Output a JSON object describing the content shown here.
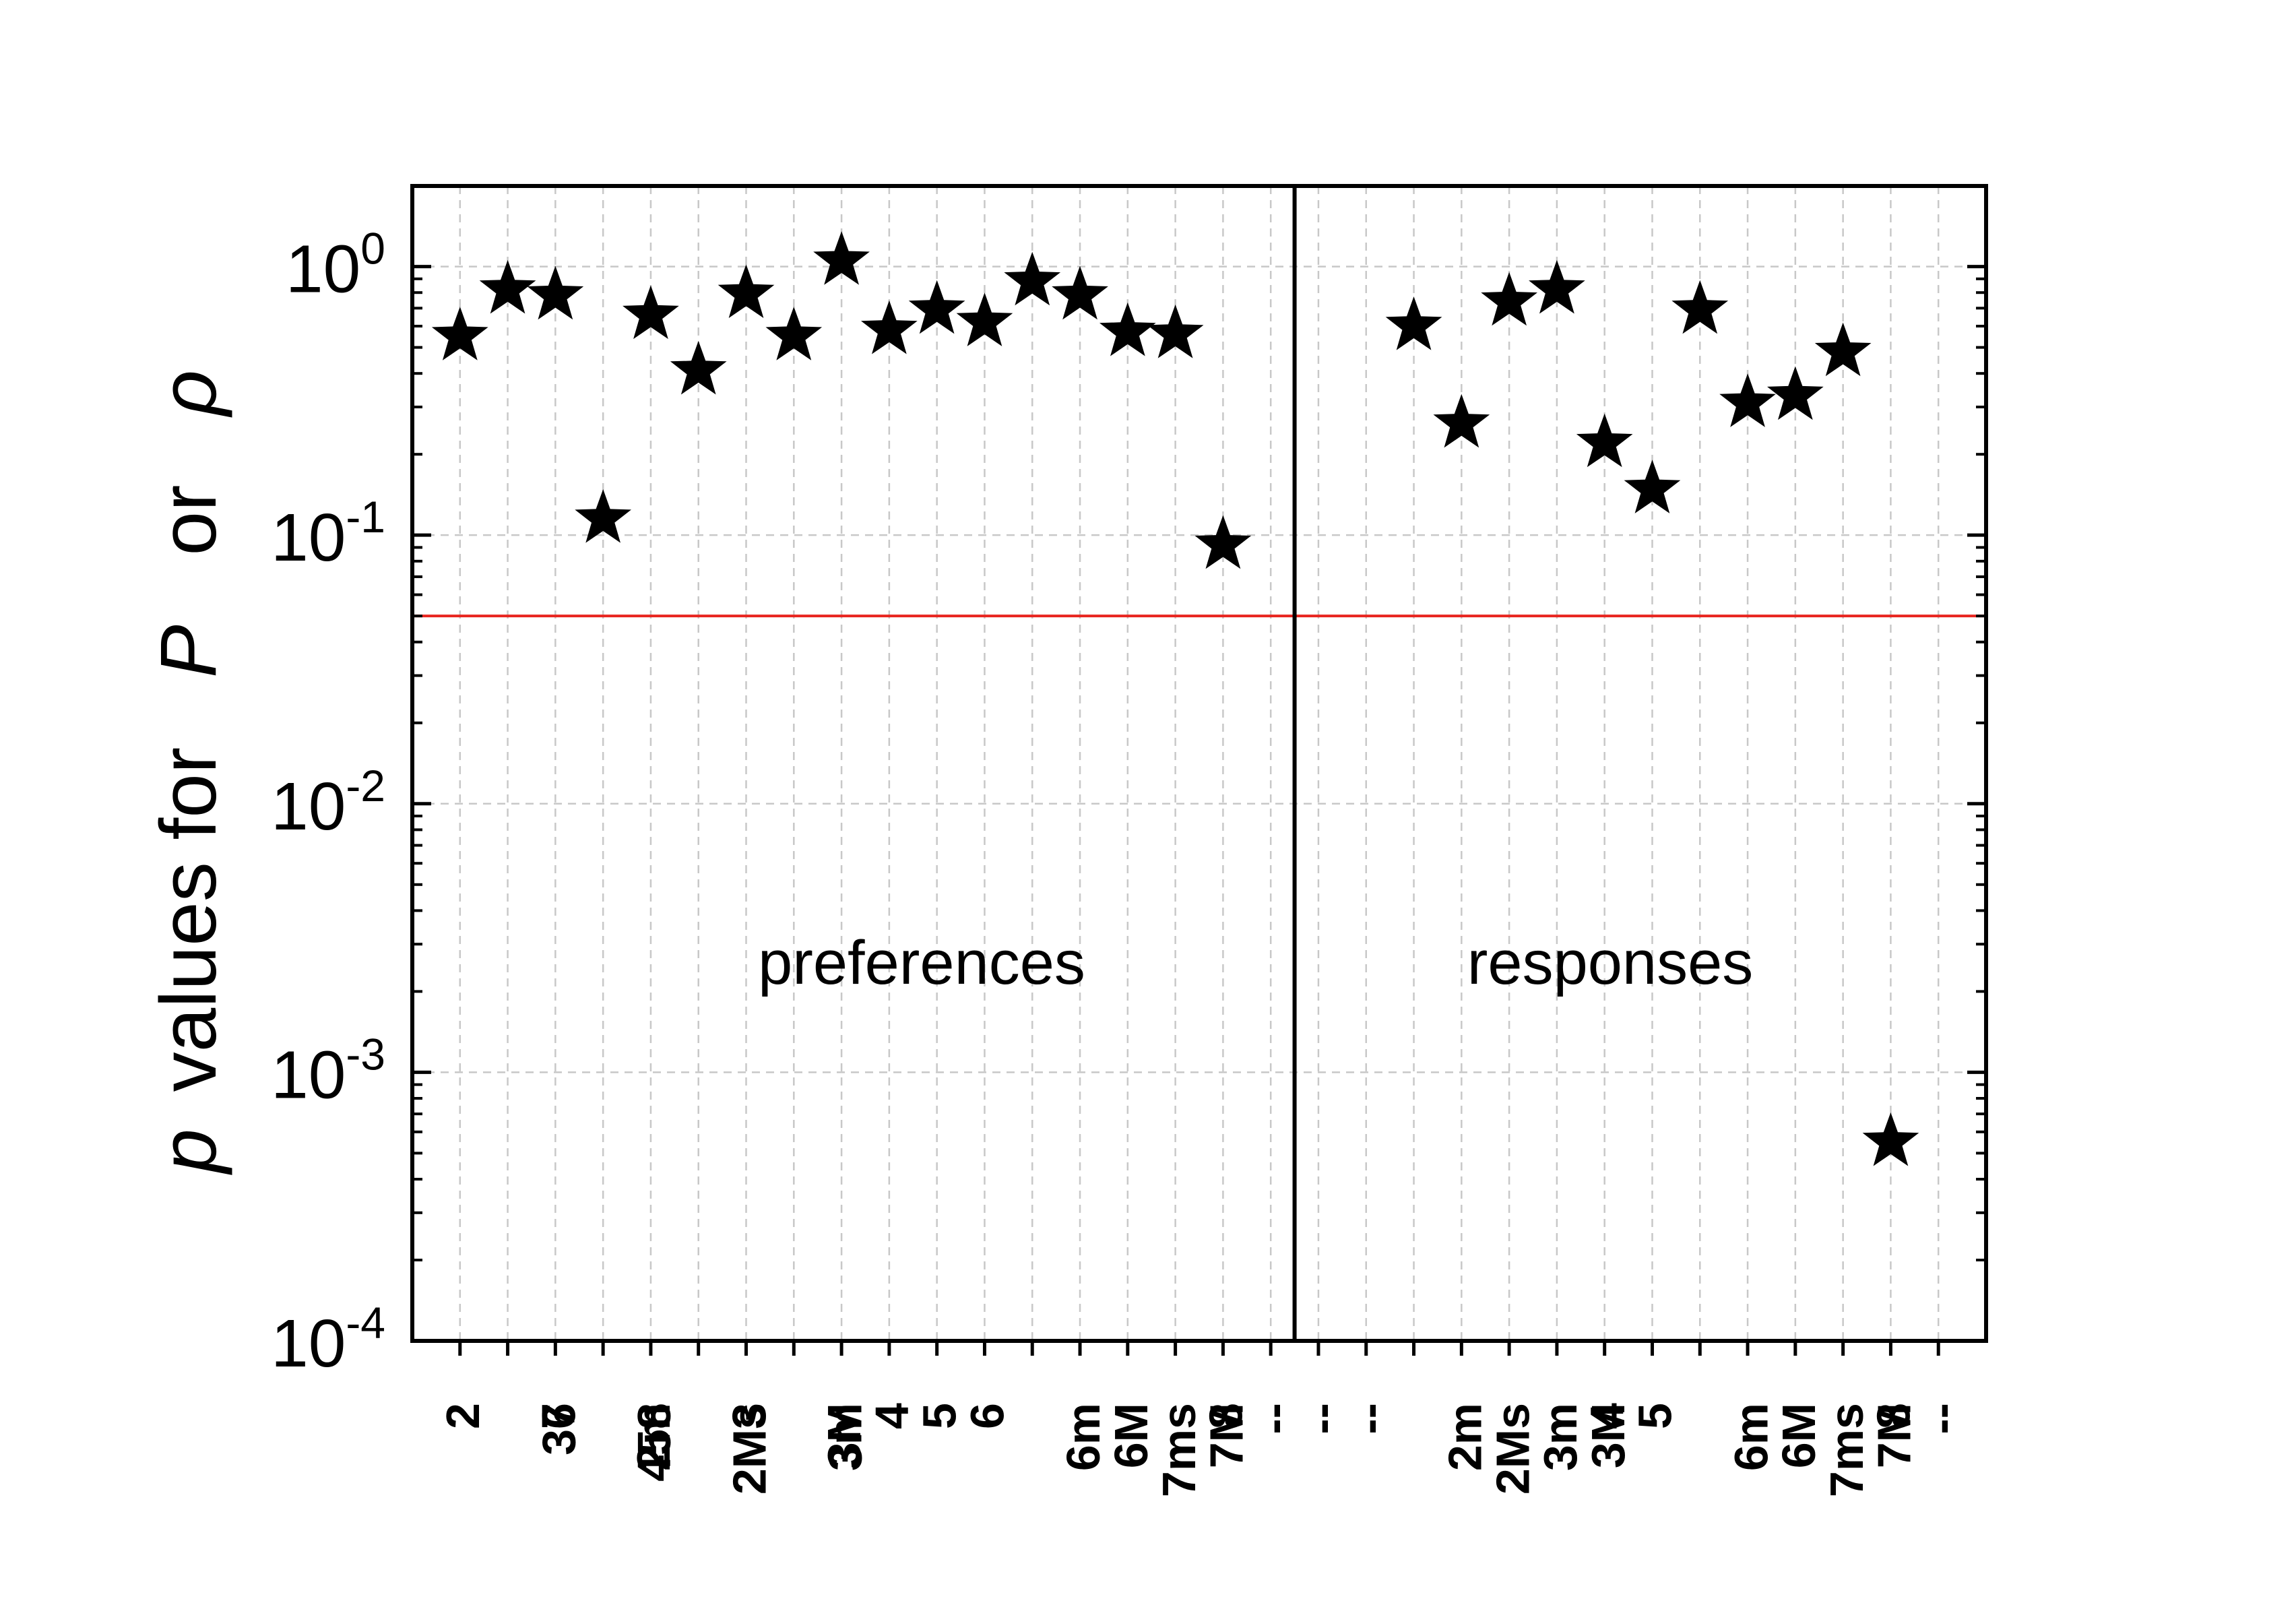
{
  "chart_data": {
    "type": "scatter",
    "ylabel": {
      "p": "p",
      "values_for": "values for",
      "P": "P",
      "or": "or",
      "rho": "ρ"
    },
    "yscale": "log",
    "ylim": [
      0.0001,
      2
    ],
    "yticks": [
      {
        "value": 0.0001,
        "base": "10",
        "exp": "-4"
      },
      {
        "value": 0.001,
        "base": "10",
        "exp": "-3"
      },
      {
        "value": 0.01,
        "base": "10",
        "exp": "-2"
      },
      {
        "value": 0.1,
        "base": "10",
        "exp": "-1"
      },
      {
        "value": 1,
        "base": "10",
        "exp": "0"
      }
    ],
    "grid": true,
    "marker": "star",
    "threshold": {
      "value": 0.05,
      "color": "#e8251f"
    },
    "categories": [
      "2",
      "36",
      "7",
      "458",
      "2m",
      "2Ms",
      "3",
      "3m",
      "3M",
      "4",
      "5",
      "6",
      "6m",
      "6M",
      "7ms",
      "7M",
      "8",
      "--",
      "--",
      "--",
      "2m",
      "2Ms",
      "3m",
      "3M",
      "4",
      "5",
      "6m",
      "6M",
      "7ms",
      "7M",
      "8",
      "--"
    ],
    "panels": [
      {
        "label": "preferences",
        "from": 0,
        "to": 17
      },
      {
        "label": "responses",
        "from": 18,
        "to": 31
      }
    ],
    "series": [
      {
        "values": [
          0.55,
          0.82,
          0.78,
          0.115,
          0.66,
          0.41,
          0.79,
          0.55,
          1.05,
          0.58,
          0.69,
          0.62,
          0.88,
          0.78,
          0.57,
          0.56,
          0.092,
          null,
          null,
          null,
          0.6,
          0.26,
          0.74,
          0.82,
          0.22,
          0.148,
          0.69,
          0.31,
          0.33,
          0.48,
          0.00055,
          null
        ]
      }
    ]
  }
}
